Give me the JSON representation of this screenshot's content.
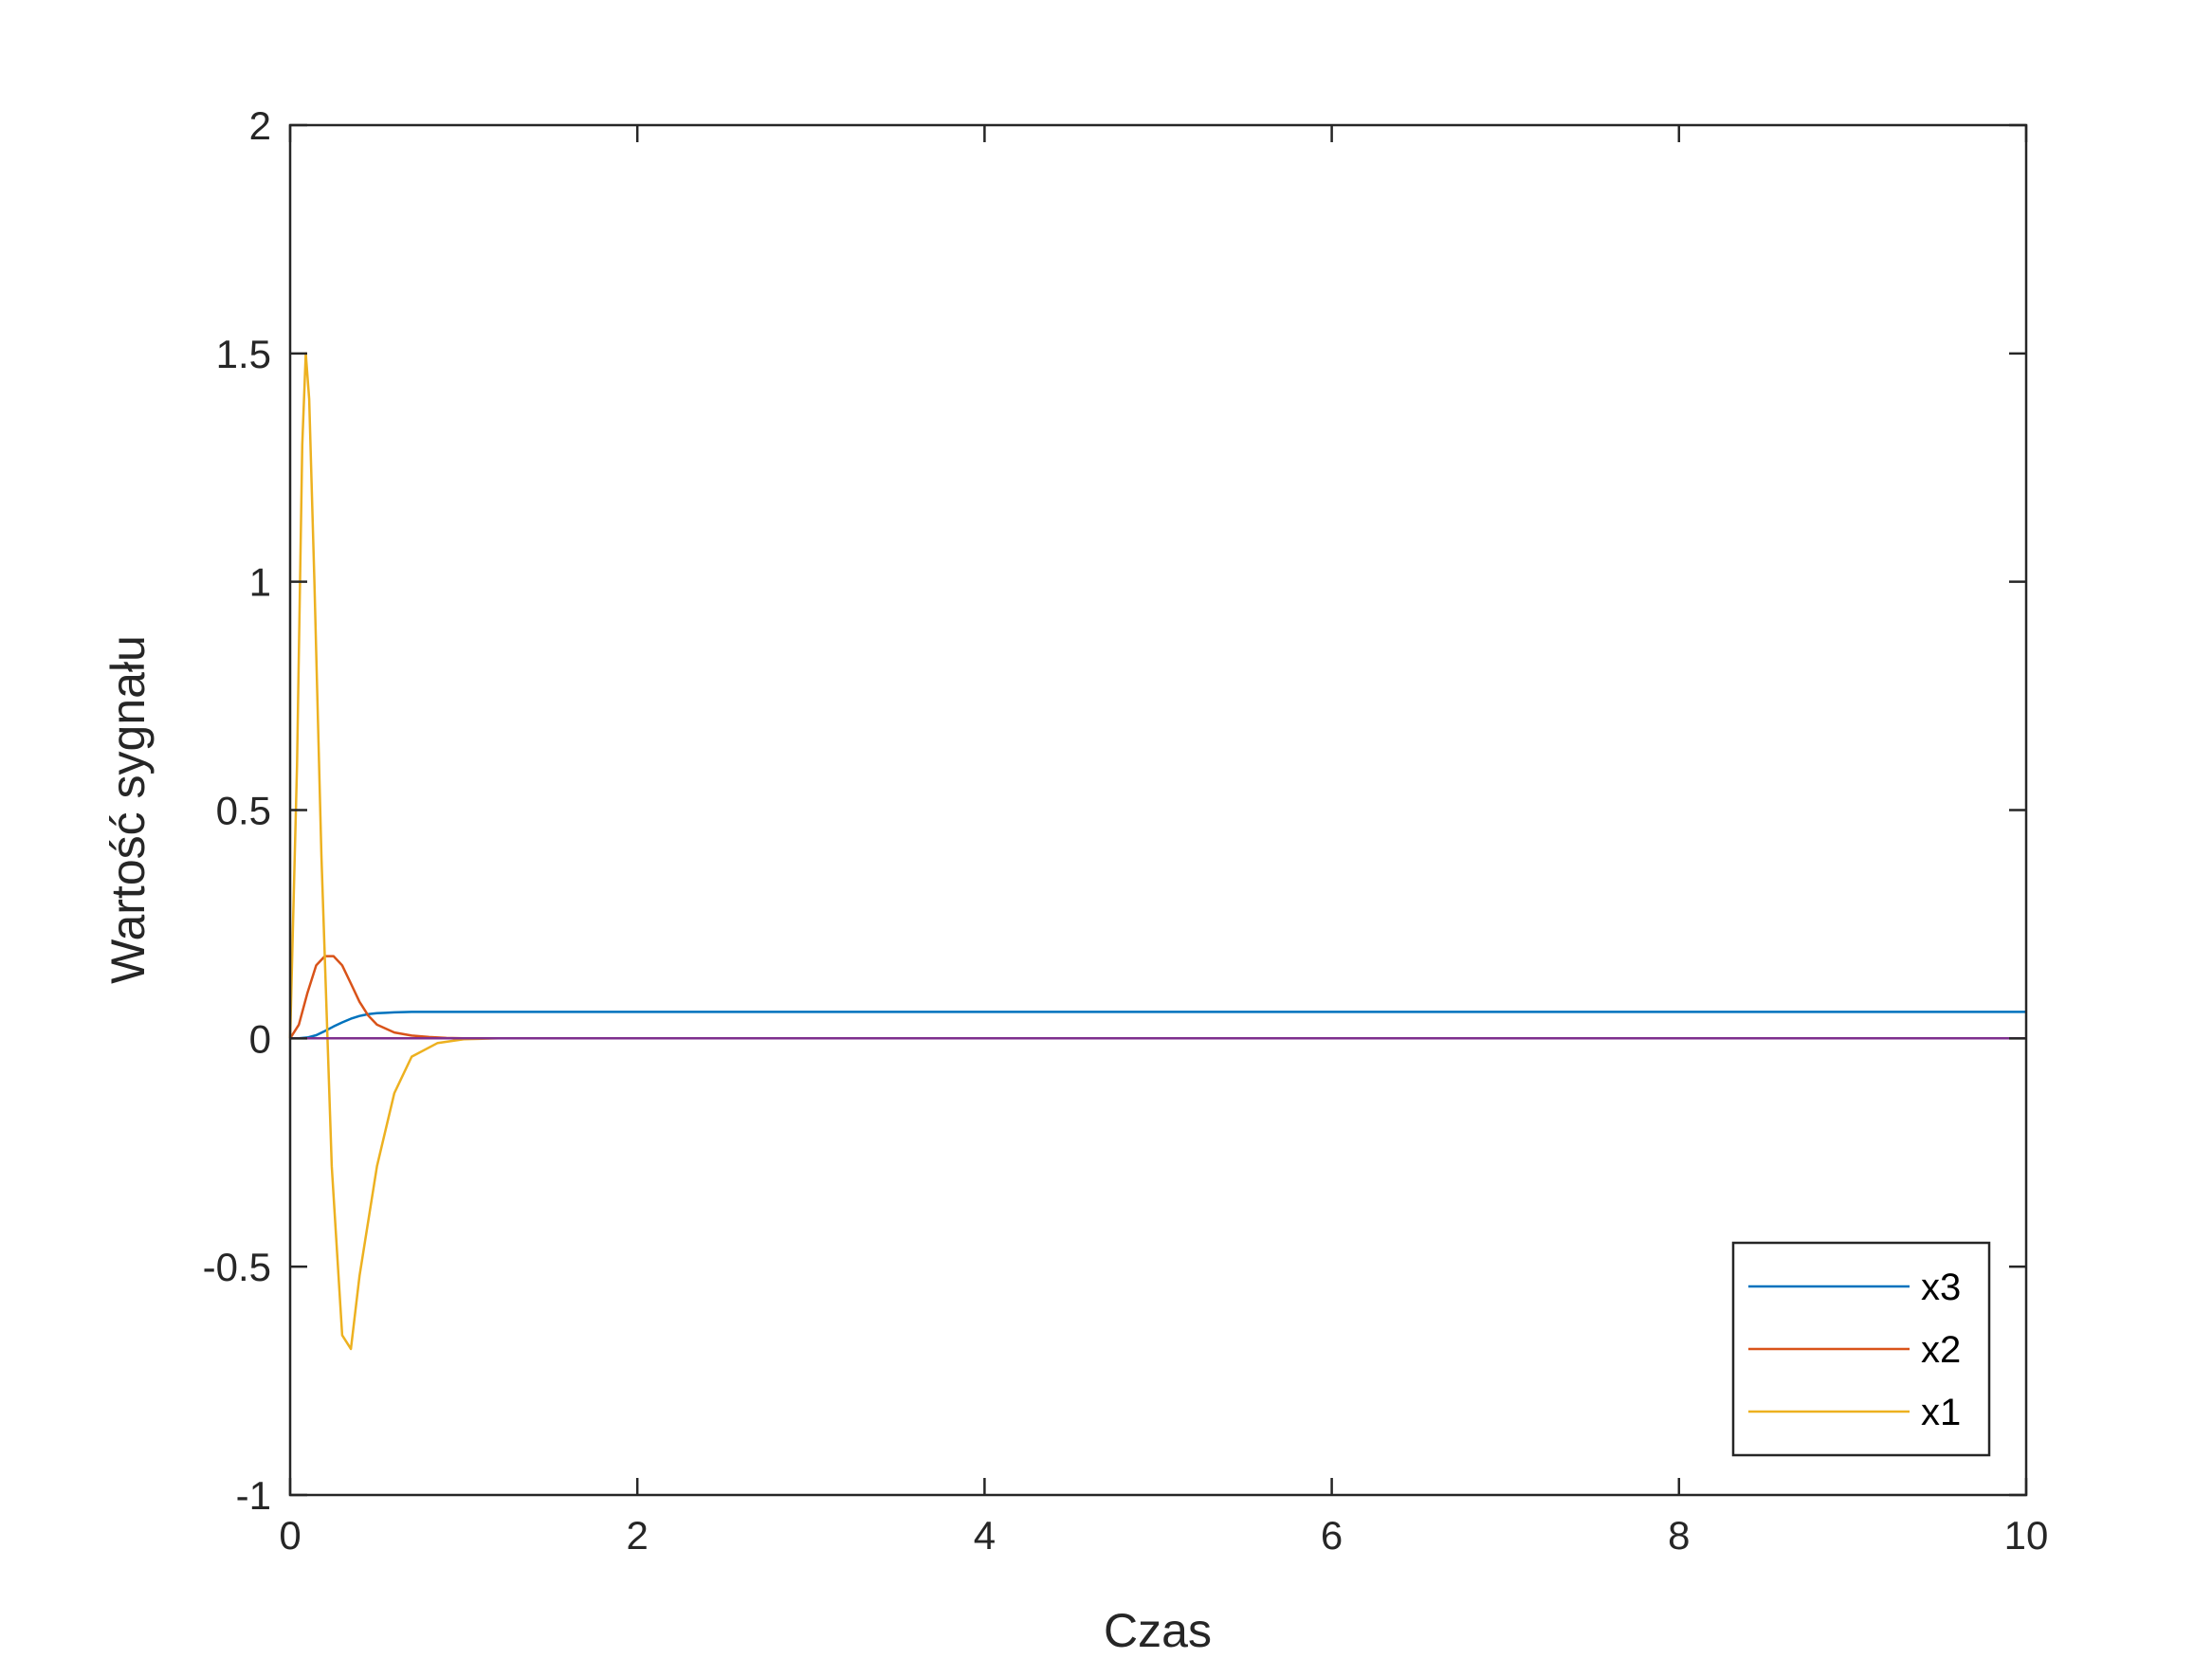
{
  "chart_data": {
    "type": "line",
    "title": "",
    "xlabel": "Czas",
    "ylabel": "Wartość sygnału",
    "xlim": [
      0,
      10
    ],
    "ylim": [
      -1,
      2
    ],
    "xticks": [
      0,
      2,
      4,
      6,
      8,
      10
    ],
    "xtick_labels": [
      "0",
      "2",
      "4",
      "6",
      "8",
      "10"
    ],
    "yticks": [
      -1,
      -0.5,
      0,
      0.5,
      1,
      1.5,
      2
    ],
    "ytick_labels": [
      "-1",
      "-0.5",
      "0",
      "0.5",
      "1",
      "1.5",
      "2"
    ],
    "grid": false,
    "legend_position": "bottom-right",
    "series": [
      {
        "name": "x3",
        "color": "#0072BD",
        "x": [
          0,
          0.05,
          0.1,
          0.15,
          0.2,
          0.25,
          0.3,
          0.35,
          0.4,
          0.45,
          0.5,
          0.55,
          0.6,
          0.7,
          0.8,
          1.0,
          1.5,
          2,
          4,
          6,
          8,
          10
        ],
        "y": [
          0,
          0.0,
          0.002,
          0.007,
          0.016,
          0.026,
          0.035,
          0.043,
          0.049,
          0.053,
          0.055,
          0.056,
          0.057,
          0.058,
          0.058,
          0.058,
          0.058,
          0.058,
          0.058,
          0.058,
          0.058,
          0.058
        ]
      },
      {
        "name": "x2",
        "color": "#D95319",
        "x": [
          0,
          0.05,
          0.1,
          0.15,
          0.2,
          0.25,
          0.3,
          0.35,
          0.4,
          0.45,
          0.5,
          0.6,
          0.7,
          0.8,
          0.9,
          1.0,
          1.2,
          1.5,
          2,
          4,
          6,
          8,
          10
        ],
        "y": [
          0,
          0.03,
          0.1,
          0.16,
          0.18,
          0.18,
          0.16,
          0.12,
          0.08,
          0.05,
          0.03,
          0.013,
          0.006,
          0.003,
          0.001,
          0.0,
          0.0,
          0.0,
          0,
          0,
          0,
          0,
          0
        ]
      },
      {
        "name": "x1",
        "color": "#EDB120",
        "x": [
          0,
          0.04,
          0.07,
          0.09,
          0.11,
          0.14,
          0.18,
          0.24,
          0.3,
          0.35,
          0.4,
          0.5,
          0.6,
          0.7,
          0.85,
          1.0,
          1.2,
          1.5,
          2,
          4,
          6,
          8,
          10
        ],
        "y": [
          0,
          0.6,
          1.3,
          1.5,
          1.4,
          1.0,
          0.4,
          -0.28,
          -0.65,
          -0.68,
          -0.52,
          -0.28,
          -0.12,
          -0.04,
          -0.01,
          -0.002,
          0,
          0,
          0,
          0,
          0,
          0,
          0
        ]
      },
      {
        "color": "#7E2F8E",
        "x": [
          0,
          10
        ],
        "y": [
          0,
          0
        ]
      }
    ],
    "legend_entries": [
      "x3",
      "x2",
      "x1"
    ]
  }
}
